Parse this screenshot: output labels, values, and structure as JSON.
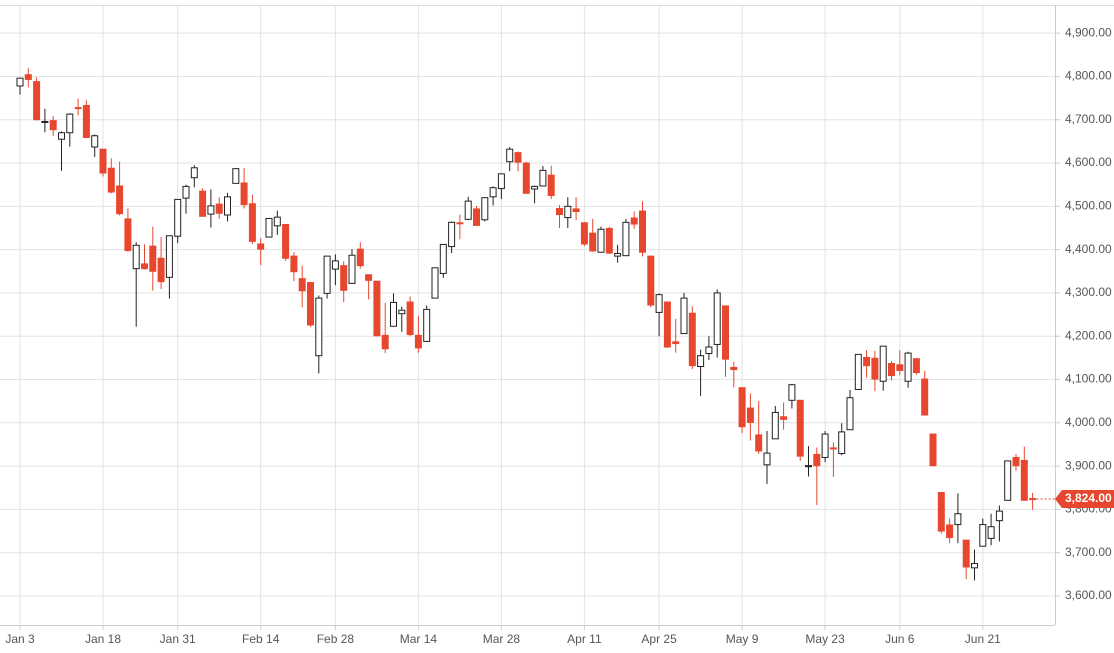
{
  "chart_data": {
    "type": "candlestick",
    "categories": [
      "Jan 3",
      null,
      null,
      null,
      null,
      null,
      null,
      null,
      null,
      null,
      "Jan 18",
      null,
      null,
      null,
      null,
      null,
      null,
      null,
      null,
      "Jan 31",
      null,
      null,
      null,
      null,
      null,
      null,
      null,
      null,
      null,
      "Feb 14",
      null,
      null,
      null,
      null,
      null,
      null,
      null,
      null,
      "Feb 28",
      null,
      null,
      null,
      null,
      null,
      null,
      null,
      null,
      null,
      "Mar 14",
      null,
      null,
      null,
      null,
      null,
      null,
      null,
      null,
      null,
      "Mar 28",
      null,
      null,
      null,
      null,
      null,
      null,
      null,
      null,
      null,
      "Apr 11",
      null,
      null,
      null,
      null,
      null,
      null,
      null,
      null,
      "Apr 25",
      null,
      null,
      null,
      null,
      null,
      null,
      null,
      null,
      null,
      "May 9",
      null,
      null,
      null,
      null,
      null,
      null,
      null,
      null,
      null,
      "May 23",
      null,
      null,
      null,
      null,
      null,
      null,
      null,
      null,
      "Jun 6",
      null,
      null,
      null,
      null,
      null,
      null,
      null,
      null,
      null,
      "Jun 21",
      null,
      null,
      null,
      null,
      null,
      null
    ],
    "open": [
      4778,
      4804,
      4788,
      4694,
      4698,
      4655,
      4670,
      4728,
      4733,
      4637,
      4632,
      4588,
      4547,
      4471,
      4356,
      4367,
      4408,
      4380,
      4336,
      4431,
      4519,
      4566,
      4535,
      4482,
      4505,
      4480,
      4553,
      4554,
      4506,
      4413,
      4429,
      4455,
      4458,
      4385,
      4333,
      4324,
      4155,
      4299,
      4355,
      4363,
      4322,
      4401,
      4342,
      4327,
      4202,
      4223,
      4252,
      4279,
      4202,
      4188,
      4288,
      4345,
      4407,
      4462,
      4470,
      4494,
      4469,
      4522,
      4541,
      4603,
      4624,
      4600,
      4540,
      4547,
      4572,
      4495,
      4474,
      4494,
      4462,
      4438,
      4394,
      4449,
      4385,
      4386,
      4473,
      4489,
      4385,
      4255,
      4279,
      4187,
      4206,
      4253,
      4130,
      4160,
      4181,
      4270,
      4128,
      4081,
      4034,
      3972,
      3903,
      3963,
      4014,
      4052,
      4052,
      3900,
      3927,
      3920,
      3942,
      3929,
      3984,
      4077,
      4151,
      4149,
      4096,
      4137,
      4134,
      4096,
      4148,
      4101,
      3974,
      3839,
      3764,
      3765,
      3729,
      3665,
      3715,
      3733,
      3774,
      3821,
      3920,
      3913,
      3825
    ],
    "high": [
      4797,
      4819,
      4798,
      4725,
      4708,
      4673,
      4715,
      4749,
      4745,
      4666,
      4632,
      4611,
      4603,
      4495,
      4417,
      4412,
      4453,
      4429,
      4432,
      4516,
      4550,
      4595,
      4542,
      4539,
      4521,
      4531,
      4588,
      4589,
      4527,
      4426,
      4472,
      4490,
      4458,
      4394,
      4363,
      4325,
      4294,
      4385,
      4389,
      4373,
      4401,
      4417,
      4342,
      4327,
      4277,
      4299,
      4268,
      4292,
      4247,
      4271,
      4358,
      4412,
      4465,
      4481,
      4522,
      4501,
      4520,
      4546,
      4575,
      4637,
      4627,
      4603,
      4548,
      4593,
      4594,
      4503,
      4521,
      4521,
      4464,
      4471,
      4453,
      4453,
      4411,
      4471,
      4488,
      4512,
      4386,
      4299,
      4279,
      4240,
      4300,
      4269,
      4169,
      4200,
      4308,
      4270,
      4141,
      4082,
      4068,
      4050,
      3981,
      4039,
      4047,
      4090,
      4052,
      3946,
      3943,
      3981,
      3955,
      3999,
      4076,
      4158,
      4168,
      4166,
      4177,
      4143,
      4168,
      4164,
      4150,
      4120,
      3974,
      3839,
      3779,
      3837,
      3729,
      3707,
      3779,
      3790,
      3809,
      3913,
      3928,
      3945,
      3838
    ],
    "low": [
      4758,
      4775,
      4699,
      4671,
      4663,
      4582,
      4638,
      4710,
      4658,
      4614,
      4569,
      4530,
      4479,
      4395,
      4222,
      4354,
      4305,
      4309,
      4287,
      4415,
      4483,
      4544,
      4477,
      4451,
      4471,
      4465,
      4553,
      4495,
      4413,
      4364,
      4429,
      4434,
      4374,
      4327,
      4267,
      4222,
      4114,
      4287,
      4318,
      4279,
      4322,
      4356,
      4285,
      4200,
      4161,
      4223,
      4210,
      4200,
      4162,
      4187,
      4288,
      4335,
      4392,
      4424,
      4468,
      4455,
      4465,
      4502,
      4517,
      4581,
      4581,
      4530,
      4507,
      4547,
      4517,
      4450,
      4450,
      4468,
      4408,
      4395,
      4393,
      4390,
      4370,
      4386,
      4448,
      4384,
      4267,
      4200,
      4173,
      4162,
      4206,
      4124,
      4062,
      4145,
      4151,
      4106,
      4082,
      3976,
      3959,
      3928,
      3859,
      3963,
      3984,
      4033,
      3912,
      3876,
      3810,
      3909,
      3875,
      3925,
      3984,
      4077,
      4104,
      4073,
      4074,
      4098,
      4110,
      4081,
      4111,
      4017,
      3900,
      3744,
      3722,
      3722,
      3639,
      3636,
      3715,
      3717,
      3726,
      3821,
      3889,
      3820,
      3799
    ],
    "close": [
      4796,
      4793,
      4700,
      4696,
      4677,
      4670,
      4713,
      4726,
      4659,
      4663,
      4577,
      4533,
      4483,
      4398,
      4410,
      4356,
      4350,
      4326,
      4432,
      4516,
      4546,
      4589,
      4477,
      4501,
      4484,
      4522,
      4587,
      4504,
      4419,
      4401,
      4472,
      4475,
      4380,
      4349,
      4305,
      4226,
      4288,
      4385,
      4374,
      4306,
      4387,
      4363,
      4329,
      4201,
      4171,
      4278,
      4260,
      4204,
      4173,
      4262,
      4358,
      4412,
      4463,
      4461,
      4512,
      4456,
      4520,
      4543,
      4575,
      4632,
      4602,
      4530,
      4546,
      4583,
      4525,
      4481,
      4500,
      4488,
      4413,
      4397,
      4447,
      4392,
      4391,
      4463,
      4459,
      4394,
      4272,
      4296,
      4175,
      4183,
      4288,
      4132,
      4155,
      4175,
      4300,
      4147,
      4123,
      3991,
      4001,
      3935,
      3930,
      4024,
      4008,
      4088,
      3923,
      3901,
      3901,
      3974,
      3941,
      3979,
      4058,
      4158,
      4132,
      4101,
      4177,
      4109,
      4121,
      4161,
      4116,
      4018,
      3901,
      3750,
      3735,
      3790,
      3667,
      3675,
      3765,
      3760,
      3796,
      3912,
      3901,
      3821,
      3824
    ],
    "last_value_label": "3,824.00",
    "up_color": "#ffffff",
    "down_color": "#e8472f",
    "ylim": [
      3533,
      4965
    ],
    "yticks": [
      {
        "value": 3600,
        "label": "3,600.00"
      },
      {
        "value": 3700,
        "label": "3,700.00"
      },
      {
        "value": 3800,
        "label": "3,800.00"
      },
      {
        "value": 3900,
        "label": "3,900.00"
      },
      {
        "value": 4000,
        "label": "4,000.00"
      },
      {
        "value": 4100,
        "label": "4,100.00"
      },
      {
        "value": 4200,
        "label": "4,200.00"
      },
      {
        "value": 4300,
        "label": "4,300.00"
      },
      {
        "value": 4400,
        "label": "4,400.00"
      },
      {
        "value": 4500,
        "label": "4,500.00"
      },
      {
        "value": 4600,
        "label": "4,600.00"
      },
      {
        "value": 4700,
        "label": "4,700.00"
      },
      {
        "value": 4800,
        "label": "4,800.00"
      },
      {
        "value": 4900,
        "label": "4,900.00"
      }
    ],
    "grid": true
  }
}
